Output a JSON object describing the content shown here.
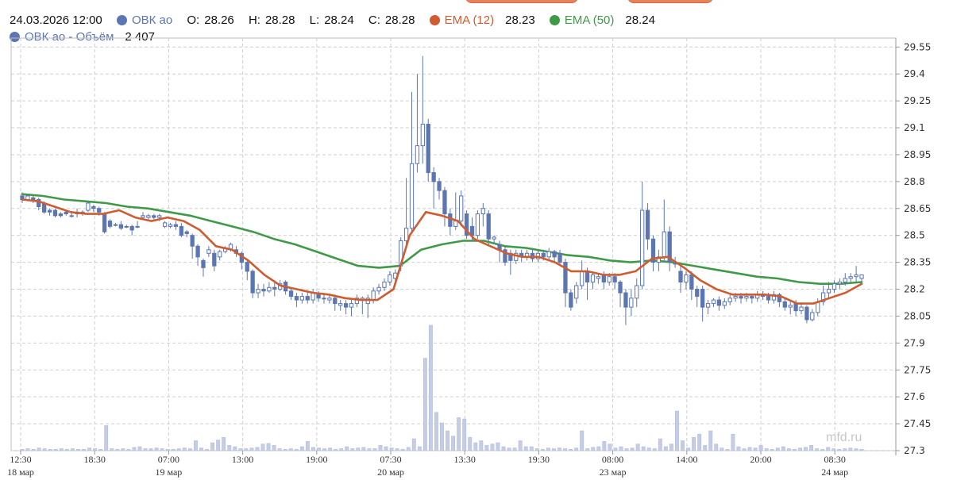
{
  "header": {
    "datetime": "24.03.2026 12:00",
    "instrument": "ОВК ао",
    "open_label": "O:",
    "open": "28.26",
    "high_label": "H:",
    "high": "28.28",
    "low_label": "L:",
    "low": "28.24",
    "close_label": "C:",
    "close": "28.28",
    "ema12_label": "EMA (12)",
    "ema12": "28.23",
    "ema50_label": "EMA (50)",
    "ema50": "28.24",
    "volume_label": "ОВК ао - Объём",
    "volume": "2 407"
  },
  "watermark": "mfd.ru",
  "colors": {
    "candle": "#5b76b3",
    "ema12": "#d05b2e",
    "ema50": "#3f9a47",
    "volume": "#c5cde6",
    "grid": "#cfcfcf"
  },
  "chart_data": {
    "type": "candlestick",
    "ylim": [
      27.3,
      29.6
    ],
    "y_ticks": [
      "29.55",
      "29.4",
      "29.25",
      "29.1",
      "28.95",
      "28.8",
      "28.65",
      "28.5",
      "28.35",
      "28.2",
      "28.05",
      "27.9",
      "27.75",
      "27.6",
      "27.45",
      "27.3"
    ],
    "x_ticks": [
      "12:30",
      "18:30",
      "07:00",
      "13:00",
      "19:00",
      "07:30",
      "13:30",
      "19:30",
      "08:00",
      "14:00",
      "20:00",
      "08:30"
    ],
    "date_labels": [
      "18 мар",
      "19 мар",
      "20 мар",
      "23 мар",
      "24 мар"
    ],
    "candles": [
      [
        28.72,
        28.7,
        28.74,
        28.68
      ],
      [
        28.7,
        28.72,
        28.73,
        28.69
      ],
      [
        28.71,
        28.7,
        28.72,
        28.68
      ],
      [
        28.7,
        28.66,
        28.71,
        28.64
      ],
      [
        28.68,
        28.63,
        28.69,
        28.62
      ],
      [
        28.64,
        28.63,
        28.65,
        28.61
      ],
      [
        28.64,
        28.61,
        28.65,
        28.6
      ],
      [
        28.62,
        28.61,
        28.63,
        28.6
      ],
      [
        28.63,
        28.62,
        28.64,
        28.61
      ],
      [
        28.61,
        28.61,
        28.63,
        28.6
      ],
      [
        28.63,
        28.62,
        28.65,
        28.6
      ],
      [
        28.62,
        28.63,
        28.64,
        28.61
      ],
      [
        28.64,
        28.68,
        28.69,
        28.63
      ],
      [
        28.66,
        28.65,
        28.67,
        28.63
      ],
      [
        28.65,
        28.63,
        28.66,
        28.61
      ],
      [
        28.62,
        28.52,
        28.63,
        28.51
      ],
      [
        28.58,
        28.55,
        28.59,
        28.54
      ],
      [
        28.56,
        28.56,
        28.57,
        28.55
      ],
      [
        28.56,
        28.54,
        28.58,
        28.53
      ],
      [
        28.55,
        28.55,
        28.56,
        28.54
      ],
      [
        28.55,
        28.53,
        28.56,
        28.5
      ],
      [
        28.55,
        28.55,
        28.58,
        28.54
      ],
      [
        28.6,
        28.61,
        28.63,
        28.59
      ],
      [
        28.6,
        28.61,
        28.62,
        28.59
      ],
      [
        28.61,
        28.6,
        28.62,
        28.59
      ],
      [
        28.6,
        28.61,
        28.62,
        28.58
      ],
      [
        28.55,
        28.57,
        28.58,
        28.54
      ],
      [
        28.55,
        28.56,
        28.57,
        28.54
      ],
      [
        28.56,
        28.55,
        28.58,
        28.53
      ],
      [
        28.55,
        28.5,
        28.57,
        28.49
      ],
      [
        28.52,
        28.51,
        28.53,
        28.49
      ],
      [
        28.5,
        28.44,
        28.51,
        28.37
      ],
      [
        28.44,
        28.38,
        28.45,
        28.33
      ],
      [
        28.36,
        28.32,
        28.37,
        28.27
      ],
      [
        28.4,
        28.42,
        28.44,
        28.38
      ],
      [
        28.4,
        28.33,
        28.42,
        28.3
      ],
      [
        28.38,
        28.41,
        28.42,
        28.36
      ],
      [
        28.41,
        28.43,
        28.44,
        28.4
      ],
      [
        28.42,
        28.45,
        28.46,
        28.41
      ],
      [
        28.42,
        28.4,
        28.44,
        28.38
      ],
      [
        28.4,
        28.35,
        28.41,
        28.31
      ],
      [
        28.35,
        28.3,
        28.36,
        28.25
      ],
      [
        28.3,
        28.18,
        28.31,
        28.15
      ],
      [
        28.18,
        28.2,
        28.23,
        28.15
      ],
      [
        28.2,
        28.19,
        28.23,
        28.16
      ],
      [
        28.19,
        28.21,
        28.24,
        28.18
      ],
      [
        28.21,
        28.2,
        28.25,
        28.16
      ],
      [
        28.2,
        28.23,
        28.25,
        28.19
      ],
      [
        28.24,
        28.19,
        28.25,
        28.17
      ],
      [
        28.19,
        28.16,
        28.21,
        28.14
      ],
      [
        28.16,
        28.14,
        28.18,
        28.1
      ],
      [
        28.14,
        28.16,
        28.18,
        28.12
      ],
      [
        28.16,
        28.14,
        28.18,
        28.12
      ],
      [
        28.14,
        28.18,
        28.2,
        28.12
      ],
      [
        28.17,
        28.15,
        28.19,
        28.13
      ],
      [
        28.15,
        28.15,
        28.18,
        28.12
      ],
      [
        28.14,
        28.15,
        28.17,
        28.12
      ],
      [
        28.15,
        28.12,
        28.17,
        28.08
      ],
      [
        28.11,
        28.12,
        28.14,
        28.08
      ],
      [
        28.12,
        28.1,
        28.14,
        28.06
      ],
      [
        28.1,
        28.12,
        28.14,
        28.05
      ],
      [
        28.12,
        28.15,
        28.17,
        28.1
      ],
      [
        28.14,
        28.15,
        28.16,
        28.06
      ],
      [
        28.12,
        28.15,
        28.17,
        28.04
      ],
      [
        28.14,
        28.19,
        28.21,
        28.12
      ],
      [
        28.19,
        28.21,
        28.23,
        28.17
      ],
      [
        28.21,
        28.24,
        28.26,
        28.19
      ],
      [
        28.24,
        28.28,
        28.3,
        28.22
      ],
      [
        28.26,
        28.29,
        28.31,
        28.24
      ],
      [
        28.33,
        28.47,
        28.49,
        28.3
      ],
      [
        28.47,
        28.54,
        28.82,
        28.45
      ],
      [
        28.54,
        28.9,
        29.3,
        28.52
      ],
      [
        28.9,
        29.0,
        29.4,
        28.85
      ],
      [
        29.0,
        29.12,
        29.5,
        28.9
      ],
      [
        29.12,
        28.85,
        29.15,
        28.8
      ],
      [
        28.85,
        28.8,
        28.88,
        28.65
      ],
      [
        28.8,
        28.75,
        28.82,
        28.7
      ],
      [
        28.75,
        28.62,
        28.77,
        28.55
      ],
      [
        28.62,
        28.55,
        28.65,
        28.5
      ],
      [
        28.55,
        28.58,
        28.74,
        28.53
      ],
      [
        28.58,
        28.72,
        28.75,
        28.55
      ],
      [
        28.62,
        28.5,
        28.64,
        28.48
      ],
      [
        28.55,
        28.5,
        28.6,
        28.47
      ],
      [
        28.5,
        28.62,
        28.64,
        28.48
      ],
      [
        28.62,
        28.65,
        28.68,
        28.55
      ],
      [
        28.62,
        28.48,
        28.64,
        28.45
      ],
      [
        28.48,
        28.49,
        28.5,
        28.45
      ],
      [
        28.45,
        28.42,
        28.47,
        28.35
      ],
      [
        28.42,
        28.35,
        28.44,
        28.33
      ],
      [
        28.4,
        28.36,
        28.42,
        28.28
      ],
      [
        28.36,
        28.4,
        28.42,
        28.34
      ],
      [
        28.4,
        28.38,
        28.42,
        28.35
      ],
      [
        28.38,
        28.4,
        28.42,
        28.36
      ],
      [
        28.4,
        28.37,
        28.42,
        28.35
      ],
      [
        28.37,
        28.4,
        28.42,
        28.35
      ],
      [
        28.4,
        28.38,
        28.42,
        28.36
      ],
      [
        28.38,
        28.41,
        28.43,
        28.36
      ],
      [
        28.41,
        28.38,
        28.42,
        28.35
      ],
      [
        28.4,
        28.35,
        28.42,
        28.33
      ],
      [
        28.35,
        28.18,
        28.37,
        28.1
      ],
      [
        28.18,
        28.1,
        28.2,
        28.08
      ],
      [
        28.15,
        28.22,
        28.24,
        28.12
      ],
      [
        28.22,
        28.3,
        28.36,
        28.2
      ],
      [
        28.3,
        28.24,
        28.32,
        28.14
      ],
      [
        28.24,
        28.28,
        28.3,
        28.2
      ],
      [
        28.26,
        28.27,
        28.29,
        28.23
      ],
      [
        28.28,
        28.24,
        28.3,
        28.2
      ],
      [
        28.24,
        28.27,
        28.29,
        28.22
      ],
      [
        28.27,
        28.24,
        28.29,
        28.2
      ],
      [
        28.24,
        28.18,
        28.25,
        28.1
      ],
      [
        28.18,
        28.1,
        28.2,
        28.0
      ],
      [
        28.1,
        28.15,
        28.2,
        28.05
      ],
      [
        28.15,
        28.22,
        28.26,
        28.1
      ],
      [
        28.22,
        28.64,
        28.8,
        28.2
      ],
      [
        28.64,
        28.48,
        28.68,
        28.42
      ],
      [
        28.48,
        28.35,
        28.5,
        28.3
      ],
      [
        28.35,
        28.38,
        28.42,
        28.3
      ],
      [
        28.38,
        28.52,
        28.7,
        28.35
      ],
      [
        28.52,
        28.35,
        28.55,
        28.3
      ],
      [
        28.35,
        28.34,
        28.38,
        28.32
      ],
      [
        28.3,
        28.24,
        28.34,
        28.18
      ],
      [
        28.24,
        28.28,
        28.3,
        28.2
      ],
      [
        28.28,
        28.2,
        28.3,
        28.14
      ],
      [
        28.2,
        28.16,
        28.22,
        28.1
      ],
      [
        28.2,
        28.1,
        28.22,
        28.02
      ],
      [
        28.1,
        28.12,
        28.14,
        28.06
      ],
      [
        28.12,
        28.14,
        28.15,
        28.1
      ],
      [
        28.14,
        28.11,
        28.16,
        28.08
      ],
      [
        28.11,
        28.13,
        28.15,
        28.09
      ],
      [
        28.13,
        28.15,
        28.17,
        28.11
      ],
      [
        28.15,
        28.16,
        28.18,
        28.13
      ],
      [
        28.16,
        28.15,
        28.18,
        28.12
      ],
      [
        28.15,
        28.16,
        28.18,
        28.13
      ],
      [
        28.16,
        28.15,
        28.17,
        28.12
      ],
      [
        28.15,
        28.17,
        28.19,
        28.13
      ],
      [
        28.17,
        28.16,
        28.19,
        28.14
      ],
      [
        28.16,
        28.14,
        28.18,
        28.12
      ],
      [
        28.14,
        28.17,
        28.19,
        28.12
      ],
      [
        28.17,
        28.13,
        28.18,
        28.1
      ],
      [
        28.13,
        28.1,
        28.15,
        28.08
      ],
      [
        28.1,
        28.11,
        28.13,
        28.06
      ],
      [
        28.12,
        28.08,
        28.14,
        28.05
      ],
      [
        28.08,
        28.1,
        28.12,
        28.06
      ],
      [
        28.1,
        28.03,
        28.11,
        28.01
      ],
      [
        28.03,
        28.07,
        28.09,
        28.02
      ],
      [
        28.07,
        28.13,
        28.15,
        28.05
      ],
      [
        28.13,
        28.18,
        28.22,
        28.11
      ],
      [
        28.18,
        28.2,
        28.24,
        28.15
      ],
      [
        28.2,
        28.23,
        28.25,
        28.18
      ],
      [
        28.23,
        28.24,
        28.26,
        28.2
      ],
      [
        28.24,
        28.26,
        28.29,
        28.22
      ],
      [
        28.26,
        28.27,
        28.29,
        28.24
      ],
      [
        28.27,
        28.28,
        28.33,
        28.24
      ],
      [
        28.26,
        28.28,
        28.28,
        28.24
      ]
    ],
    "ema12": [
      28.7,
      28.69,
      28.66,
      28.63,
      28.62,
      28.62,
      28.64,
      28.6,
      28.58,
      28.6,
      28.58,
      28.53,
      28.44,
      28.42,
      28.36,
      28.28,
      28.22,
      28.2,
      28.18,
      28.17,
      28.15,
      28.14,
      28.14,
      28.2,
      28.5,
      28.63,
      28.61,
      28.58,
      28.48,
      28.44,
      28.4,
      28.38,
      28.38,
      28.35,
      28.3,
      28.3,
      28.28,
      28.28,
      28.3,
      28.37,
      28.38,
      28.32,
      28.25,
      28.2,
      28.17,
      28.17,
      28.17,
      28.16,
      28.12,
      28.12,
      28.15,
      28.18,
      28.23
    ],
    "ema50": [
      28.73,
      28.72,
      28.7,
      28.69,
      28.68,
      28.66,
      28.65,
      28.63,
      28.61,
      28.58,
      28.55,
      28.52,
      28.48,
      28.45,
      28.41,
      28.37,
      28.33,
      28.32,
      28.33,
      28.42,
      28.45,
      28.47,
      28.47,
      28.44,
      28.43,
      28.41,
      28.39,
      28.38,
      28.36,
      28.35,
      28.36,
      28.35,
      28.33,
      28.31,
      28.29,
      28.27,
      28.26,
      28.24,
      28.23,
      28.23,
      28.24
    ],
    "volume": [
      2,
      3,
      2,
      4,
      3,
      2,
      2,
      3,
      2,
      3,
      2,
      2,
      4,
      3,
      2,
      38,
      3,
      2,
      3,
      2,
      5,
      6,
      3,
      3,
      4,
      3,
      2,
      2,
      3,
      4,
      3,
      15,
      4,
      2,
      12,
      16,
      20,
      8,
      6,
      3,
      3,
      4,
      5,
      10,
      11,
      8,
      3,
      2,
      3,
      2,
      6,
      14,
      5,
      4,
      3,
      4,
      2,
      3,
      6,
      3,
      4,
      5,
      3,
      3,
      8,
      6,
      4,
      3,
      2,
      5,
      18,
      6,
      140,
      190,
      58,
      42,
      30,
      22,
      50,
      48,
      20,
      12,
      15,
      8,
      10,
      12,
      6,
      4,
      4,
      15,
      6,
      6,
      3,
      2,
      4,
      3,
      4,
      3,
      2,
      4,
      30,
      3,
      5,
      6,
      14,
      10,
      4,
      6,
      3,
      4,
      10,
      6,
      4,
      3,
      18,
      6,
      10,
      60,
      15,
      4,
      20,
      25,
      8,
      30,
      10,
      4,
      2,
      25,
      6,
      3,
      5,
      4,
      8,
      3,
      2,
      4,
      6,
      3,
      2,
      4,
      5,
      8,
      3,
      2,
      5,
      3,
      2,
      3,
      4,
      3,
      2
    ]
  }
}
